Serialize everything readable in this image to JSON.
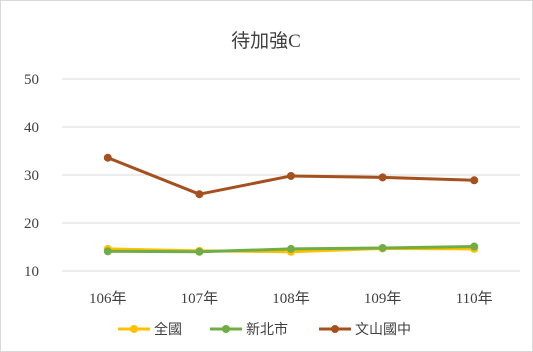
{
  "chart_data": {
    "type": "line",
    "title": "待加強C",
    "xlabel": "",
    "ylabel": "",
    "categories": [
      "106年",
      "107年",
      "108年",
      "109年",
      "110年"
    ],
    "ylim": [
      10,
      50
    ],
    "yticks": [
      "10",
      "20",
      "30",
      "40",
      "50"
    ],
    "grid": true,
    "legend_position": "bottom",
    "series": [
      {
        "name": "全國",
        "color": "#FFC000",
        "values": [
          14.6,
          14.2,
          14.0,
          14.7,
          14.6
        ]
      },
      {
        "name": "新北市",
        "color": "#70AD47",
        "values": [
          14.1,
          14.0,
          14.6,
          14.8,
          15.1
        ]
      },
      {
        "name": "文山國中",
        "color": "#A5501E",
        "values": [
          33.6,
          26.0,
          29.8,
          29.5,
          28.9
        ]
      }
    ]
  }
}
